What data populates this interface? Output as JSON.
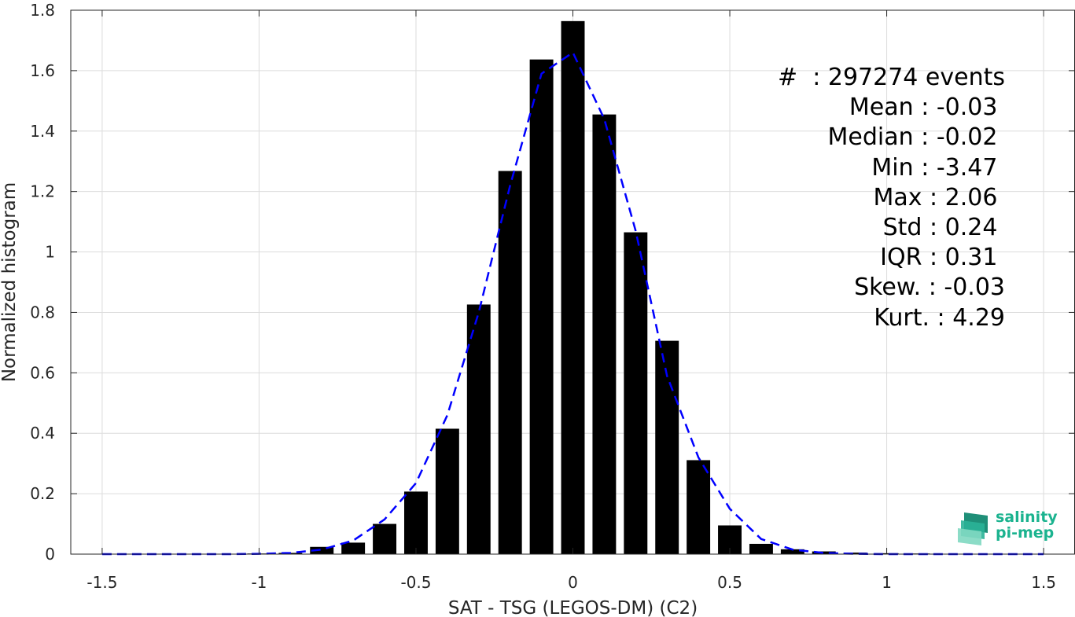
{
  "chart_data": {
    "type": "bar",
    "xlabel": "SAT - TSG (LEGOS-DM) (C2)",
    "ylabel": "Normalized histogram",
    "xlim": [
      -1.6,
      1.6
    ],
    "ylim": [
      0,
      1.8
    ],
    "xticks": [
      -1.5,
      -1,
      -0.5,
      0,
      0.5,
      1,
      1.5
    ],
    "xtick_labels": [
      "-1.5",
      "-1",
      "-0.5",
      "0",
      "0.5",
      "1",
      "1.5"
    ],
    "yticks": [
      0,
      0.2,
      0.4,
      0.6,
      0.8,
      1,
      1.2,
      1.4,
      1.6,
      1.8
    ],
    "ytick_labels": [
      "0",
      "0.2",
      "0.4",
      "0.6",
      "0.8",
      "1",
      "1.2",
      "1.4",
      "1.6",
      "1.8"
    ],
    "grid": true,
    "bar_color": "#000000",
    "bar_width": 0.075,
    "bars": {
      "x": [
        -1.5,
        -1.4,
        -1.3,
        -1.2,
        -1.1,
        -1.0,
        -0.9,
        -0.8,
        -0.7,
        -0.6,
        -0.5,
        -0.4,
        -0.3,
        -0.2,
        -0.1,
        0.0,
        0.1,
        0.2,
        0.3,
        0.4,
        0.5,
        0.6,
        0.7,
        0.8,
        0.9,
        1.0,
        1.1,
        1.2,
        1.3,
        1.4,
        1.5
      ],
      "values": [
        0.001,
        0.001,
        0.001,
        0.001,
        0.001,
        0.002,
        0.004,
        0.024,
        0.038,
        0.1,
        0.207,
        0.415,
        0.826,
        1.268,
        1.637,
        1.764,
        1.455,
        1.065,
        0.706,
        0.311,
        0.095,
        0.034,
        0.016,
        0.009,
        0.005,
        0.003,
        0.002,
        0.001,
        0.001,
        0.001,
        0.001
      ]
    },
    "fit_line": {
      "style": "dashed",
      "color": "#0000ff",
      "x": [
        -1.5,
        -1.4,
        -1.3,
        -1.2,
        -1.1,
        -1.0,
        -0.9,
        -0.8,
        -0.7,
        -0.6,
        -0.5,
        -0.4,
        -0.3,
        -0.2,
        -0.1,
        0.0,
        0.1,
        0.2,
        0.3,
        0.4,
        0.5,
        0.6,
        0.7,
        0.8,
        0.9,
        1.0,
        1.1,
        1.2,
        1.3,
        1.4,
        1.5
      ],
      "values": [
        0.0,
        0.0,
        0.0,
        0.0,
        0.0,
        0.001,
        0.004,
        0.015,
        0.045,
        0.115,
        0.235,
        0.46,
        0.8,
        1.22,
        1.59,
        1.66,
        1.44,
        1.07,
        0.59,
        0.32,
        0.15,
        0.05,
        0.015,
        0.004,
        0.001,
        0.0,
        0.0,
        0.0,
        0.0,
        0.0,
        0.0
      ]
    }
  },
  "stats": [
    "#  : 297274 events",
    "Mean : -0.03 ",
    "Median : -0.02 ",
    "Min : -3.47 ",
    "Max : 2.06 ",
    "Std : 0.24 ",
    "IQR : 0.31 ",
    "Skew. : -0.03",
    "Kurt. : 4.29"
  ],
  "logo": {
    "line1": "salinity",
    "line2": "pi-mep",
    "color": "#1bb38f"
  }
}
